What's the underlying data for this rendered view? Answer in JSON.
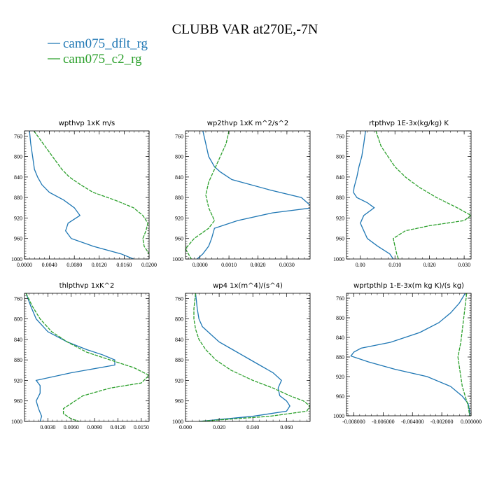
{
  "title": "CLUBB VAR at270E,-7N",
  "colors": {
    "series1": "#1f77b4",
    "series2": "#2ca02c",
    "axis": "#000000"
  },
  "legend": [
    {
      "label": "cam075_dflt_rg"
    },
    {
      "label": "cam075_c2_rg"
    }
  ],
  "chart_data": [
    {
      "type": "line",
      "title": "wpthvp   1xK m/s",
      "xlim": [
        0.0,
        0.02
      ],
      "ylim": [
        1000,
        750
      ],
      "yticks": [
        760,
        800,
        840,
        880,
        920,
        960,
        1000
      ],
      "xticks": [
        0.0,
        0.004,
        0.008,
        0.012,
        0.016,
        0.02
      ],
      "xticklabels": [
        "0.0000",
        "0.0040",
        "0.0080",
        "0.0120",
        "0.0160",
        "0.0200"
      ],
      "series": [
        {
          "p": [
            750,
            775,
            800,
            825,
            840,
            855,
            870,
            885,
            900,
            915,
            930,
            945,
            960,
            975,
            990,
            1000
          ],
          "x": [
            0.0008,
            0.001,
            0.0013,
            0.0016,
            0.0021,
            0.0028,
            0.004,
            0.0063,
            0.008,
            0.0089,
            0.007,
            0.0066,
            0.0075,
            0.011,
            0.0155,
            0.0175
          ]
        },
        {
          "p": [
            750,
            775,
            800,
            825,
            840,
            855,
            870,
            885,
            900,
            915,
            930,
            945,
            960,
            975,
            990,
            1000
          ],
          "x": [
            0.0015,
            0.003,
            0.0045,
            0.006,
            0.0072,
            0.009,
            0.011,
            0.0145,
            0.0175,
            0.019,
            0.0198,
            0.0195,
            0.019,
            0.0192,
            0.02,
            0.0203
          ]
        }
      ]
    },
    {
      "type": "line",
      "title": "wp2thvp   1xK m^2/s^2",
      "xlim": [
        -0.0005,
        0.0038
      ],
      "ylim": [
        1000,
        750
      ],
      "yticks": [
        760,
        800,
        840,
        880,
        920,
        960,
        1000
      ],
      "xticks": [
        0.0,
        0.001,
        0.002,
        0.003
      ],
      "xticklabels": [
        "0.0000",
        "0.0010",
        "0.0020",
        "0.0030"
      ],
      "series": [
        {
          "p": [
            750,
            775,
            800,
            820,
            830,
            845,
            865,
            880,
            895,
            900,
            910,
            925,
            940,
            960,
            975,
            990,
            1000
          ],
          "x": [
            0.0001,
            0.0002,
            0.0003,
            0.0005,
            0.0007,
            0.0011,
            0.0024,
            0.0035,
            0.0038,
            0.0039,
            0.0025,
            0.0013,
            0.0005,
            0.0004,
            0.0003,
            0.0001,
            -0.0001
          ]
        },
        {
          "p": [
            750,
            775,
            800,
            825,
            850,
            875,
            900,
            925,
            940,
            960,
            980,
            1000
          ],
          "x": [
            0.001,
            0.0009,
            0.0007,
            0.0005,
            0.0003,
            0.0002,
            0.0003,
            0.0005,
            0.0003,
            -0.0002,
            -0.0005,
            -0.0003
          ]
        }
      ]
    },
    {
      "type": "line",
      "title": "rtpthvp   1E-3x(kg/kg) K",
      "xlim": [
        -0.004,
        0.032
      ],
      "ylim": [
        1000,
        750
      ],
      "yticks": [
        760,
        800,
        840,
        880,
        920,
        960,
        1000
      ],
      "xticks": [
        0.0,
        0.01,
        0.02,
        0.03
      ],
      "xticklabels": [
        "0.00",
        "0.010",
        "0.020",
        "0.030"
      ],
      "series": [
        {
          "p": [
            750,
            775,
            800,
            820,
            840,
            860,
            870,
            880,
            890,
            900,
            915,
            930,
            945,
            960,
            975,
            990,
            1000
          ],
          "x": [
            0.0015,
            0.001,
            0.0004,
            -0.0004,
            -0.001,
            -0.0018,
            -0.002,
            -0.001,
            0.002,
            0.004,
            0.001,
            0.0,
            0.001,
            0.002,
            0.005,
            0.0085,
            0.0095
          ]
        },
        {
          "p": [
            750,
            780,
            800,
            820,
            840,
            860,
            880,
            900,
            915,
            925,
            935,
            945,
            960,
            975,
            990,
            1000
          ],
          "x": [
            0.0045,
            0.006,
            0.008,
            0.01,
            0.013,
            0.017,
            0.022,
            0.028,
            0.032,
            0.03,
            0.02,
            0.013,
            0.0095,
            0.01,
            0.0105,
            0.011
          ]
        }
      ]
    },
    {
      "type": "line",
      "title": "thlpthvp   1xK^2",
      "xlim": [
        0.0,
        0.016
      ],
      "ylim": [
        1000,
        750
      ],
      "yticks": [
        760,
        800,
        840,
        880,
        920,
        960,
        1000
      ],
      "xticks": [
        0.003,
        0.006,
        0.009,
        0.012,
        0.015
      ],
      "xticklabels": [
        "0.0030",
        "0.0060",
        "0.0090",
        "0.0120",
        "0.0150"
      ],
      "series": [
        {
          "p": [
            750,
            775,
            800,
            825,
            845,
            860,
            870,
            880,
            890,
            905,
            920,
            930,
            945,
            960,
            975,
            990,
            1000
          ],
          "x": [
            0.0002,
            0.0008,
            0.0015,
            0.003,
            0.0055,
            0.008,
            0.01,
            0.0116,
            0.0116,
            0.006,
            0.0015,
            0.002,
            0.002,
            0.0015,
            0.0018,
            0.0022,
            0.002
          ]
        },
        {
          "p": [
            750,
            775,
            800,
            825,
            845,
            865,
            880,
            895,
            910,
            925,
            935,
            950,
            965,
            975,
            985,
            995,
            1000
          ],
          "x": [
            0.0002,
            0.001,
            0.002,
            0.0035,
            0.0055,
            0.008,
            0.011,
            0.014,
            0.016,
            0.015,
            0.011,
            0.0075,
            0.006,
            0.005,
            0.005,
            0.006,
            0.007
          ]
        }
      ]
    },
    {
      "type": "line",
      "title": "wp4   1x(m^4)/(s^4)",
      "xlim": [
        0.0,
        0.074
      ],
      "ylim": [
        1000,
        750
      ],
      "yticks": [
        760,
        800,
        840,
        880,
        920,
        960,
        1000
      ],
      "xticks": [
        0.0,
        0.02,
        0.04,
        0.06
      ],
      "xticklabels": [
        "0.000",
        "0.020",
        "0.040",
        "0.060"
      ],
      "series": [
        {
          "p": [
            750,
            780,
            800,
            815,
            830,
            845,
            860,
            875,
            890,
            905,
            920,
            935,
            950,
            960,
            970,
            980,
            990,
            1000
          ],
          "x": [
            0.006,
            0.007,
            0.008,
            0.01,
            0.015,
            0.02,
            0.028,
            0.036,
            0.044,
            0.052,
            0.057,
            0.055,
            0.056,
            0.06,
            0.062,
            0.06,
            0.04,
            0.008
          ]
        },
        {
          "p": [
            750,
            780,
            800,
            820,
            840,
            860,
            880,
            900,
            920,
            935,
            950,
            960,
            970,
            980,
            990,
            1000
          ],
          "x": [
            0.006,
            0.005,
            0.005,
            0.006,
            0.008,
            0.012,
            0.018,
            0.027,
            0.04,
            0.052,
            0.062,
            0.07,
            0.074,
            0.072,
            0.05,
            0.008
          ]
        }
      ]
    },
    {
      "type": "line",
      "title": "wprtpthlp   1-E-3x(m kg K)/(s kg)",
      "xlim": [
        -0.0085,
        0.0
      ],
      "ylim": [
        1000,
        750
      ],
      "yticks": [
        760,
        800,
        840,
        880,
        920,
        960,
        1000
      ],
      "xticks": [
        -0.008,
        -0.006,
        -0.004,
        -0.002,
        0.0
      ],
      "xticklabels": [
        "-0.008000",
        "-0.006000",
        "-0.004000",
        "-0.002000",
        "0.000000"
      ],
      "series": [
        {
          "p": [
            750,
            770,
            790,
            810,
            830,
            850,
            862,
            870,
            878,
            890,
            905,
            920,
            940,
            960,
            975,
            990,
            1000
          ],
          "x": [
            -0.0004,
            -0.0008,
            -0.0014,
            -0.0022,
            -0.0035,
            -0.0055,
            -0.0075,
            -0.008,
            -0.0082,
            -0.007,
            -0.0052,
            -0.003,
            -0.0014,
            -0.0006,
            -0.0002,
            -0.0001,
            -0.0001
          ]
        },
        {
          "p": [
            750,
            800,
            850,
            880,
            900,
            920,
            940,
            960,
            980,
            1000
          ],
          "x": [
            -0.0003,
            -0.0005,
            -0.0007,
            -0.0009,
            -0.0008,
            -0.0007,
            -0.0006,
            -0.0004,
            -0.0002,
            -0.0001
          ]
        }
      ]
    }
  ]
}
